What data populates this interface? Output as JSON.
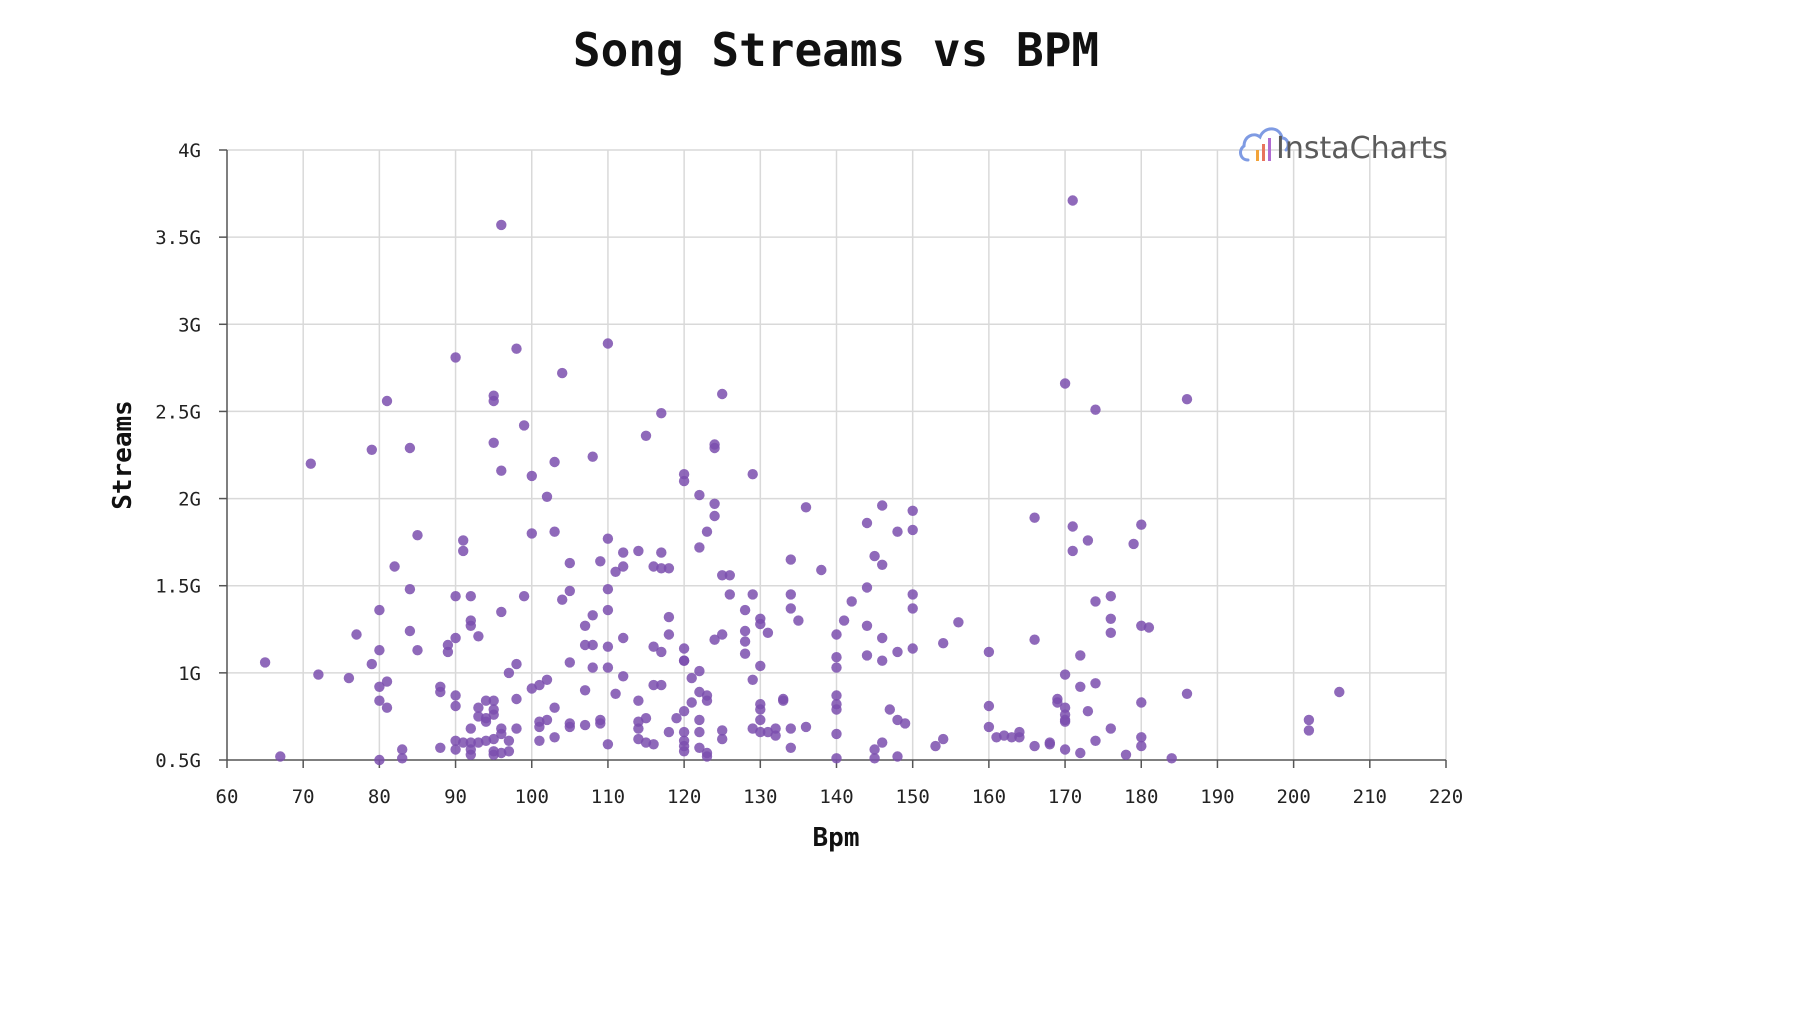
{
  "chart_data": {
    "type": "scatter",
    "title": "Song Streams vs BPM",
    "xlabel": "Bpm",
    "ylabel": "Streams",
    "xlim": [
      60,
      220
    ],
    "ylim": [
      500000000,
      4000000000
    ],
    "xticks": [
      60,
      70,
      80,
      90,
      100,
      110,
      120,
      130,
      140,
      150,
      160,
      170,
      180,
      190,
      200,
      210,
      220
    ],
    "yticks": [
      {
        "value": 500000000,
        "label": "0.5G"
      },
      {
        "value": 1000000000,
        "label": "1G"
      },
      {
        "value": 1500000000,
        "label": "1.5G"
      },
      {
        "value": 2000000000,
        "label": "2G"
      },
      {
        "value": 2500000000,
        "label": "2.5G"
      },
      {
        "value": 3000000000,
        "label": "3G"
      },
      {
        "value": 3500000000,
        "label": "3.5G"
      },
      {
        "value": 4000000000,
        "label": "4G"
      }
    ],
    "grid": true,
    "marker_color": "#7b4fae",
    "points": [
      [
        65,
        1.06
      ],
      [
        67,
        0.52
      ],
      [
        71,
        2.2
      ],
      [
        72,
        0.99
      ],
      [
        76,
        0.97
      ],
      [
        77,
        1.22
      ],
      [
        79,
        2.28
      ],
      [
        79,
        1.05
      ],
      [
        80,
        1.36
      ],
      [
        80,
        1.13
      ],
      [
        80,
        0.92
      ],
      [
        80,
        0.84
      ],
      [
        80,
        0.5
      ],
      [
        81,
        2.56
      ],
      [
        81,
        0.95
      ],
      [
        81,
        0.8
      ],
      [
        82,
        1.61
      ],
      [
        83,
        0.56
      ],
      [
        83,
        0.51
      ],
      [
        84,
        2.29
      ],
      [
        84,
        1.48
      ],
      [
        84,
        1.24
      ],
      [
        85,
        1.79
      ],
      [
        85,
        1.13
      ],
      [
        88,
        0.92
      ],
      [
        88,
        0.89
      ],
      [
        88,
        0.57
      ],
      [
        89,
        1.16
      ],
      [
        89,
        1.12
      ],
      [
        90,
        2.81
      ],
      [
        90,
        1.44
      ],
      [
        90,
        1.2
      ],
      [
        90,
        0.87
      ],
      [
        90,
        0.81
      ],
      [
        90,
        0.61
      ],
      [
        90,
        0.56
      ],
      [
        91,
        1.76
      ],
      [
        91,
        1.7
      ],
      [
        91,
        0.6
      ],
      [
        92,
        1.44
      ],
      [
        92,
        1.3
      ],
      [
        92,
        1.27
      ],
      [
        92,
        0.68
      ],
      [
        92,
        0.6
      ],
      [
        92,
        0.56
      ],
      [
        92,
        0.53
      ],
      [
        93,
        1.21
      ],
      [
        93,
        0.8
      ],
      [
        93,
        0.75
      ],
      [
        93,
        0.6
      ],
      [
        94,
        0.84
      ],
      [
        94,
        0.74
      ],
      [
        94,
        0.72
      ],
      [
        94,
        0.61
      ],
      [
        95,
        2.59
      ],
      [
        95,
        2.56
      ],
      [
        95,
        2.32
      ],
      [
        95,
        0.84
      ],
      [
        95,
        0.79
      ],
      [
        95,
        0.76
      ],
      [
        95,
        0.62
      ],
      [
        95,
        0.55
      ],
      [
        95,
        0.53
      ],
      [
        96,
        3.57
      ],
      [
        96,
        2.16
      ],
      [
        96,
        1.35
      ],
      [
        96,
        0.68
      ],
      [
        96,
        0.65
      ],
      [
        96,
        0.54
      ],
      [
        97,
        1.0
      ],
      [
        97,
        0.61
      ],
      [
        97,
        0.55
      ],
      [
        98,
        2.86
      ],
      [
        98,
        1.05
      ],
      [
        98,
        0.85
      ],
      [
        98,
        0.68
      ],
      [
        99,
        2.42
      ],
      [
        99,
        1.44
      ],
      [
        100,
        2.13
      ],
      [
        100,
        1.8
      ],
      [
        100,
        0.91
      ],
      [
        101,
        0.93
      ],
      [
        101,
        0.72
      ],
      [
        101,
        0.69
      ],
      [
        101,
        0.61
      ],
      [
        102,
        2.01
      ],
      [
        102,
        0.96
      ],
      [
        102,
        0.73
      ],
      [
        103,
        2.21
      ],
      [
        103,
        1.81
      ],
      [
        103,
        0.8
      ],
      [
        103,
        0.63
      ],
      [
        104,
        2.72
      ],
      [
        104,
        1.42
      ],
      [
        105,
        1.63
      ],
      [
        105,
        1.47
      ],
      [
        105,
        1.06
      ],
      [
        105,
        0.71
      ],
      [
        105,
        0.69
      ],
      [
        107,
        1.27
      ],
      [
        107,
        1.16
      ],
      [
        107,
        0.9
      ],
      [
        107,
        0.7
      ],
      [
        108,
        2.24
      ],
      [
        108,
        1.33
      ],
      [
        108,
        1.16
      ],
      [
        108,
        1.03
      ],
      [
        109,
        1.64
      ],
      [
        109,
        0.73
      ],
      [
        109,
        0.71
      ],
      [
        110,
        2.89
      ],
      [
        110,
        1.77
      ],
      [
        110,
        1.48
      ],
      [
        110,
        1.36
      ],
      [
        110,
        1.15
      ],
      [
        110,
        1.03
      ],
      [
        110,
        0.59
      ],
      [
        111,
        1.58
      ],
      [
        111,
        0.88
      ],
      [
        112,
        1.69
      ],
      [
        112,
        1.61
      ],
      [
        112,
        1.2
      ],
      [
        112,
        0.98
      ],
      [
        114,
        1.7
      ],
      [
        114,
        0.84
      ],
      [
        114,
        0.72
      ],
      [
        114,
        0.68
      ],
      [
        114,
        0.62
      ],
      [
        115,
        2.36
      ],
      [
        115,
        0.74
      ],
      [
        115,
        0.6
      ],
      [
        116,
        1.61
      ],
      [
        116,
        1.15
      ],
      [
        116,
        0.93
      ],
      [
        116,
        0.59
      ],
      [
        117,
        2.49
      ],
      [
        117,
        1.69
      ],
      [
        117,
        1.6
      ],
      [
        117,
        1.12
      ],
      [
        117,
        0.93
      ],
      [
        118,
        1.6
      ],
      [
        118,
        1.32
      ],
      [
        118,
        1.22
      ],
      [
        118,
        0.66
      ],
      [
        119,
        0.74
      ],
      [
        120,
        2.14
      ],
      [
        120,
        2.1
      ],
      [
        120,
        1.14
      ],
      [
        120,
        1.07
      ],
      [
        120,
        1.07
      ],
      [
        120,
        0.78
      ],
      [
        120,
        0.66
      ],
      [
        120,
        0.61
      ],
      [
        120,
        0.58
      ],
      [
        120,
        0.55
      ],
      [
        121,
        0.97
      ],
      [
        121,
        0.83
      ],
      [
        122,
        2.02
      ],
      [
        122,
        1.72
      ],
      [
        122,
        1.01
      ],
      [
        122,
        0.89
      ],
      [
        122,
        0.73
      ],
      [
        122,
        0.66
      ],
      [
        122,
        0.57
      ],
      [
        123,
        1.81
      ],
      [
        123,
        0.87
      ],
      [
        123,
        0.84
      ],
      [
        123,
        0.54
      ],
      [
        123,
        0.52
      ],
      [
        124,
        2.31
      ],
      [
        124,
        2.29
      ],
      [
        124,
        1.97
      ],
      [
        124,
        1.9
      ],
      [
        124,
        1.19
      ],
      [
        125,
        2.6
      ],
      [
        125,
        1.56
      ],
      [
        125,
        1.22
      ],
      [
        125,
        0.67
      ],
      [
        125,
        0.62
      ],
      [
        126,
        1.56
      ],
      [
        126,
        1.45
      ],
      [
        128,
        1.36
      ],
      [
        128,
        1.24
      ],
      [
        128,
        1.18
      ],
      [
        128,
        1.11
      ],
      [
        129,
        2.14
      ],
      [
        129,
        1.45
      ],
      [
        129,
        0.96
      ],
      [
        129,
        0.68
      ],
      [
        130,
        1.31
      ],
      [
        130,
        1.28
      ],
      [
        130,
        1.04
      ],
      [
        130,
        0.82
      ],
      [
        130,
        0.79
      ],
      [
        130,
        0.73
      ],
      [
        130,
        0.66
      ],
      [
        131,
        1.23
      ],
      [
        131,
        0.66
      ],
      [
        132,
        0.68
      ],
      [
        132,
        0.64
      ],
      [
        133,
        0.85
      ],
      [
        133,
        0.84
      ],
      [
        134,
        1.65
      ],
      [
        134,
        1.45
      ],
      [
        134,
        1.37
      ],
      [
        134,
        0.68
      ],
      [
        134,
        0.57
      ],
      [
        135,
        1.3
      ],
      [
        136,
        1.95
      ],
      [
        136,
        0.69
      ],
      [
        138,
        1.59
      ],
      [
        140,
        1.22
      ],
      [
        140,
        1.09
      ],
      [
        140,
        1.03
      ],
      [
        140,
        0.87
      ],
      [
        140,
        0.82
      ],
      [
        140,
        0.79
      ],
      [
        140,
        0.65
      ],
      [
        140,
        0.51
      ],
      [
        141,
        1.3
      ],
      [
        142,
        1.41
      ],
      [
        144,
        1.86
      ],
      [
        144,
        1.49
      ],
      [
        144,
        1.27
      ],
      [
        144,
        1.1
      ],
      [
        145,
        1.67
      ],
      [
        145,
        0.56
      ],
      [
        145,
        0.51
      ],
      [
        146,
        1.96
      ],
      [
        146,
        1.62
      ],
      [
        146,
        1.2
      ],
      [
        146,
        1.07
      ],
      [
        146,
        0.6
      ],
      [
        147,
        0.79
      ],
      [
        148,
        1.81
      ],
      [
        148,
        1.12
      ],
      [
        148,
        0.73
      ],
      [
        148,
        0.52
      ],
      [
        149,
        0.71
      ],
      [
        150,
        1.93
      ],
      [
        150,
        1.82
      ],
      [
        150,
        1.45
      ],
      [
        150,
        1.37
      ],
      [
        150,
        1.14
      ],
      [
        153,
        0.58
      ],
      [
        154,
        1.17
      ],
      [
        154,
        0.62
      ],
      [
        156,
        1.29
      ],
      [
        160,
        1.12
      ],
      [
        160,
        0.81
      ],
      [
        160,
        0.69
      ],
      [
        161,
        0.63
      ],
      [
        162,
        0.64
      ],
      [
        163,
        0.63
      ],
      [
        164,
        0.66
      ],
      [
        164,
        0.63
      ],
      [
        166,
        1.89
      ],
      [
        166,
        1.19
      ],
      [
        166,
        0.58
      ],
      [
        168,
        0.6
      ],
      [
        168,
        0.59
      ],
      [
        169,
        0.85
      ],
      [
        169,
        0.83
      ],
      [
        170,
        2.66
      ],
      [
        170,
        0.99
      ],
      [
        170,
        0.8
      ],
      [
        170,
        0.76
      ],
      [
        170,
        0.73
      ],
      [
        170,
        0.72
      ],
      [
        170,
        0.56
      ],
      [
        171,
        3.71
      ],
      [
        171,
        1.84
      ],
      [
        171,
        1.7
      ],
      [
        172,
        1.1
      ],
      [
        172,
        0.92
      ],
      [
        172,
        0.54
      ],
      [
        173,
        1.76
      ],
      [
        173,
        0.78
      ],
      [
        174,
        2.51
      ],
      [
        174,
        1.41
      ],
      [
        174,
        0.94
      ],
      [
        174,
        0.61
      ],
      [
        176,
        1.44
      ],
      [
        176,
        1.31
      ],
      [
        176,
        1.23
      ],
      [
        176,
        0.68
      ],
      [
        178,
        0.53
      ],
      [
        179,
        1.74
      ],
      [
        180,
        1.85
      ],
      [
        180,
        1.27
      ],
      [
        180,
        0.83
      ],
      [
        180,
        0.63
      ],
      [
        180,
        0.58
      ],
      [
        181,
        1.26
      ],
      [
        184,
        0.51
      ],
      [
        186,
        2.57
      ],
      [
        186,
        0.88
      ],
      [
        202,
        0.73
      ],
      [
        202,
        0.67
      ],
      [
        206,
        0.89
      ]
    ]
  },
  "branding": {
    "text": "InstaCharts",
    "cloud_color": "#7f9be3",
    "bar_colors": [
      "#f2a33a",
      "#e8745d",
      "#b06bd1"
    ]
  }
}
